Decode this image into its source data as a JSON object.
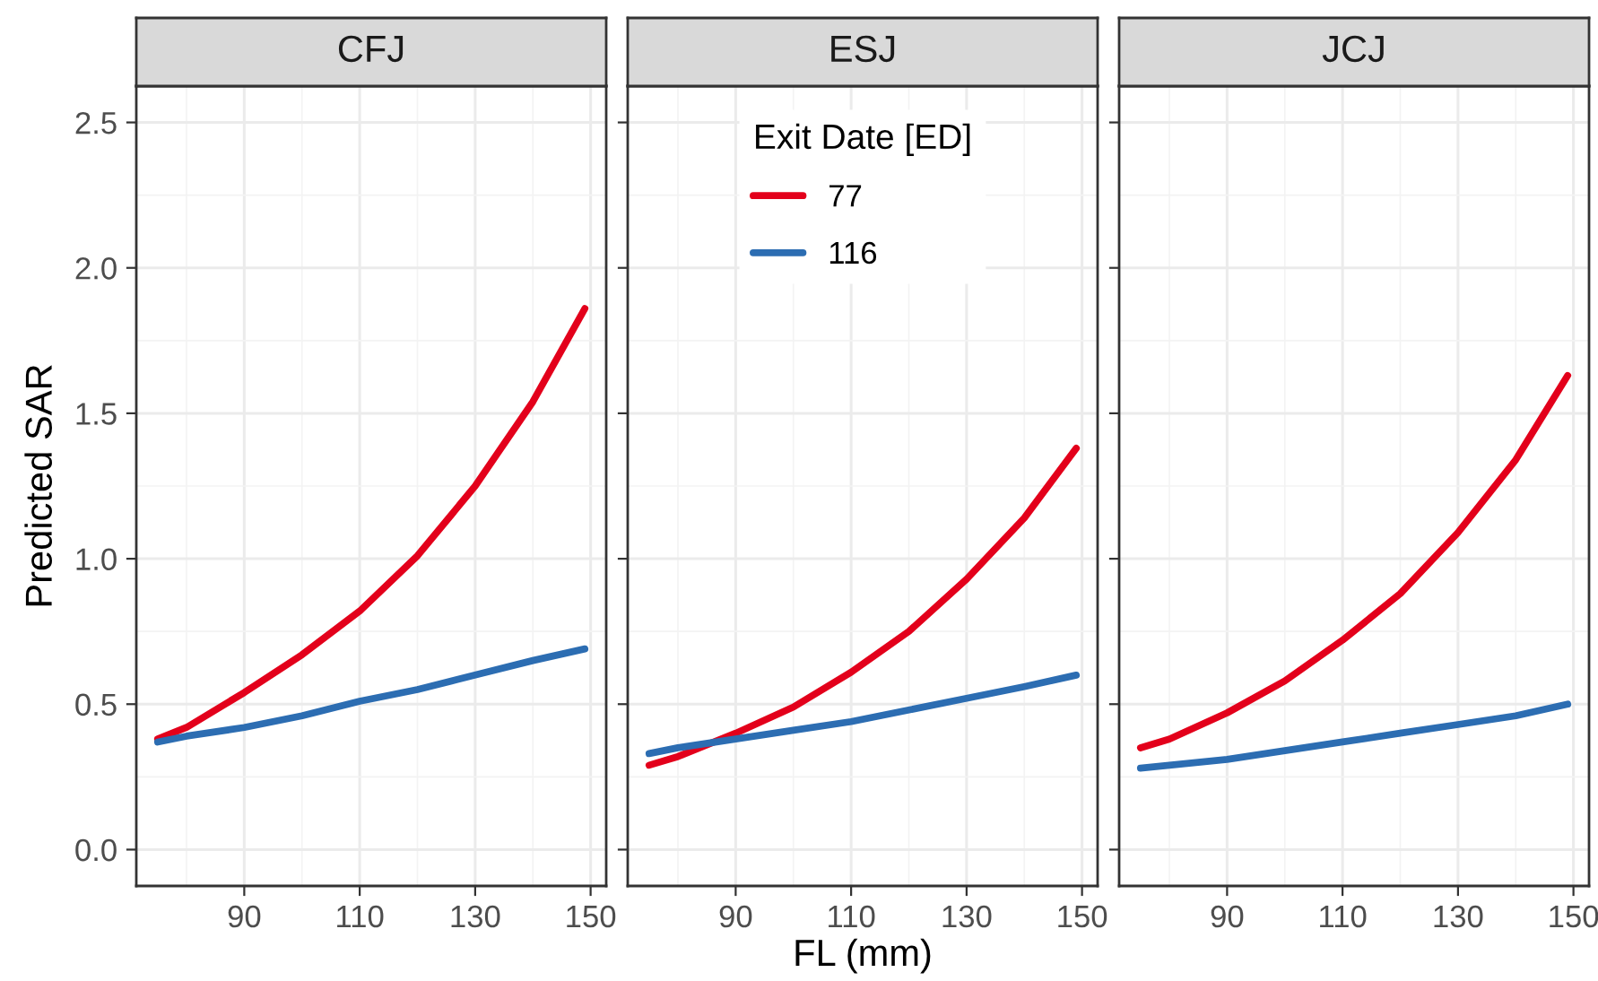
{
  "chart_data": [
    {
      "type": "line",
      "title": "CFJ",
      "ylabel": "Predicted SAR",
      "xlim": [
        71.3,
        152.7
      ],
      "xticks": [
        90,
        110,
        130,
        150
      ],
      "ylim": [
        -0.125,
        2.625
      ],
      "yticks": [
        {
          "value": 0,
          "label": "0.0"
        },
        {
          "value": 0.5,
          "label": "0.5"
        },
        {
          "value": 1,
          "label": "1.0"
        },
        {
          "value": 1.5,
          "label": "1.5"
        },
        {
          "value": 2,
          "label": "2.0"
        },
        {
          "value": 2.5,
          "label": "2.5"
        }
      ],
      "grid": true,
      "x": [
        75,
        80,
        90,
        100,
        110,
        120,
        130,
        140,
        149
      ],
      "series": [
        {
          "color": "#e3001b",
          "values": [
            0.38,
            0.42,
            0.54,
            0.67,
            0.82,
            1.01,
            1.25,
            1.54,
            1.86
          ]
        },
        {
          "color": "#2c6db2",
          "values": [
            0.37,
            0.39,
            0.42,
            0.46,
            0.51,
            0.55,
            0.6,
            0.65,
            0.69
          ]
        }
      ]
    },
    {
      "type": "line",
      "title": "ESJ",
      "xlabel": "FL (mm)",
      "legend_title": "Exit Date [ED]",
      "legend": "top",
      "tick_labels": "x",
      "xlim": [
        71.3,
        152.7
      ],
      "xticks": [
        90,
        110,
        130,
        150
      ],
      "ylim": [
        -0.125,
        2.625
      ],
      "yticks": [
        0,
        0.5,
        1,
        1.5,
        2,
        2.5
      ],
      "grid": true,
      "x": [
        75,
        80,
        90,
        100,
        110,
        120,
        130,
        140,
        149
      ],
      "series": [
        {
          "name": "77",
          "color": "#e3001b",
          "values": [
            0.29,
            0.32,
            0.4,
            0.49,
            0.61,
            0.75,
            0.93,
            1.14,
            1.38
          ]
        },
        {
          "name": "116",
          "color": "#2c6db2",
          "values": [
            0.33,
            0.35,
            0.38,
            0.41,
            0.44,
            0.48,
            0.52,
            0.56,
            0.6
          ]
        }
      ]
    },
    {
      "type": "line",
      "title": "JCJ",
      "tick_labels": "x",
      "xlim": [
        71.3,
        152.7
      ],
      "xticks": [
        90,
        110,
        130,
        150
      ],
      "ylim": [
        -0.125,
        2.625
      ],
      "yticks": [
        0,
        0.5,
        1,
        1.5,
        2,
        2.5
      ],
      "grid": true,
      "x": [
        75,
        80,
        90,
        100,
        110,
        120,
        130,
        140,
        149
      ],
      "series": [
        {
          "color": "#e3001b",
          "values": [
            0.35,
            0.38,
            0.47,
            0.58,
            0.72,
            0.88,
            1.09,
            1.34,
            1.63
          ]
        },
        {
          "color": "#2c6db2",
          "values": [
            0.28,
            0.29,
            0.31,
            0.34,
            0.37,
            0.4,
            0.43,
            0.46,
            0.5
          ]
        }
      ]
    }
  ]
}
